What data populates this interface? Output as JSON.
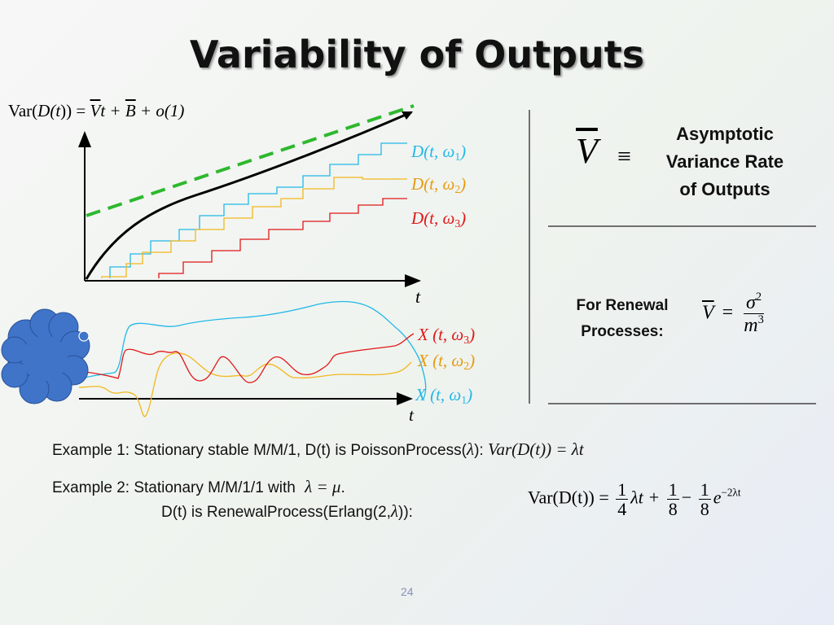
{
  "slide": {
    "title": "Variability of Outputs",
    "page_number": "24"
  },
  "formula_top": {
    "var": "Var(",
    "d": "D",
    "paren_t": "(t",
    "close": ")) =",
    "vbar": "V",
    "t": "t +",
    "bbar": "B",
    "rest": "+ o(1)"
  },
  "output_labels": [
    {
      "name": "D(t, ω",
      "sub": "1",
      "close": ")",
      "color": "#22b8e8"
    },
    {
      "name": "D(t, ω",
      "sub": "2",
      "close": ")",
      "color": "#e89a10"
    },
    {
      "name": "D(t, ω",
      "sub": "3",
      "close": ")",
      "color": "#e01818"
    }
  ],
  "input_labels": [
    {
      "name": "X (t, ω",
      "sub": "3",
      "close": ")",
      "color": "#e01818"
    },
    {
      "name": "X (t, ω",
      "sub": "2",
      "close": ")",
      "color": "#e89a10"
    },
    {
      "name": "X (t, ω",
      "sub": "1",
      "close": ")",
      "color": "#22b8e8"
    }
  ],
  "axis": {
    "t_label": "t"
  },
  "definition": {
    "vbar": "V",
    "equiv": "≡",
    "text_line1": "Asymptotic",
    "text_line2": "Variance Rate",
    "text_line3": "of Outputs"
  },
  "renewal": {
    "label_line1": "For Renewal",
    "label_line2": "Processes:",
    "vbar": "V",
    "eq": "=",
    "num": "σ",
    "num_exp": "2",
    "den": "m",
    "den_exp": "3"
  },
  "example1": {
    "text": "Example 1: Stationary stable M/M/1, D(t) is PoissonProcess(",
    "lambda": "λ",
    "close": "):",
    "formula": "Var(D(t)) = λt"
  },
  "example2": {
    "line1": "Example 2: Stationary M/M/1/1 with",
    "cond": "λ = μ",
    "dot": ".",
    "line2": "D(t) is RenewalProcess(Erlang(2,",
    "lambda": "λ",
    "close": ")):",
    "lhs": "Var(D(t)) =",
    "f1_num": "1",
    "f1_den": "4",
    "t1": "λt +",
    "f2_num": "1",
    "f2_den": "8",
    "minus": "−",
    "f3_num": "1",
    "f3_den": "8",
    "e": "e",
    "e_exp": "−2λt"
  },
  "colors": {
    "cyan": "#22b8e8",
    "orange": "#f2b81c",
    "red": "#e01818",
    "green": "#2eb82e",
    "cloud": "#3f74c9",
    "axis": "#000000",
    "divider": "#444444"
  }
}
